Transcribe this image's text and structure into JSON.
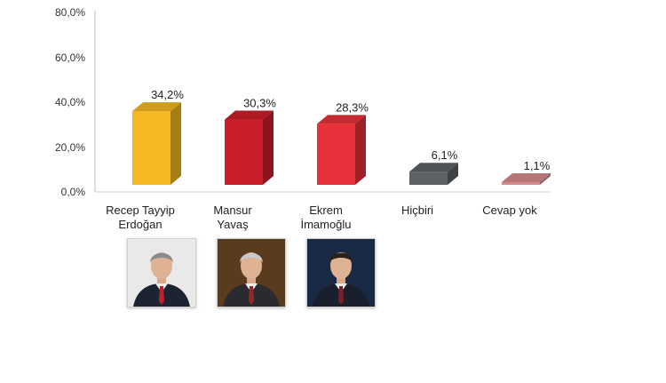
{
  "chart_data": {
    "type": "bar",
    "title": "",
    "xlabel": "",
    "ylabel": "",
    "ylim": [
      0,
      80
    ],
    "yticks": [
      "0,0%",
      "20,0%",
      "40,0%",
      "60,0%",
      "80,0%"
    ],
    "categories": [
      "Recep Tayyip\nErdoğan",
      "Mansur\nYavaş",
      "Ekrem\nİmamoğlu",
      "Hiçbiri",
      "Cevap yok"
    ],
    "values": [
      34.2,
      30.3,
      28.3,
      6.1,
      1.1
    ],
    "data_labels": [
      "34,2%",
      "30,3%",
      "28,3%",
      "6,1%",
      "1,1%"
    ],
    "colors": [
      "#f5b820",
      "#cc1e2a",
      "#e8313a",
      "#5e6264",
      "#d68a8c"
    ],
    "grid": false,
    "legend": "none",
    "portraits": [
      "person-portrait",
      "person-portrait",
      "person-portrait"
    ]
  }
}
